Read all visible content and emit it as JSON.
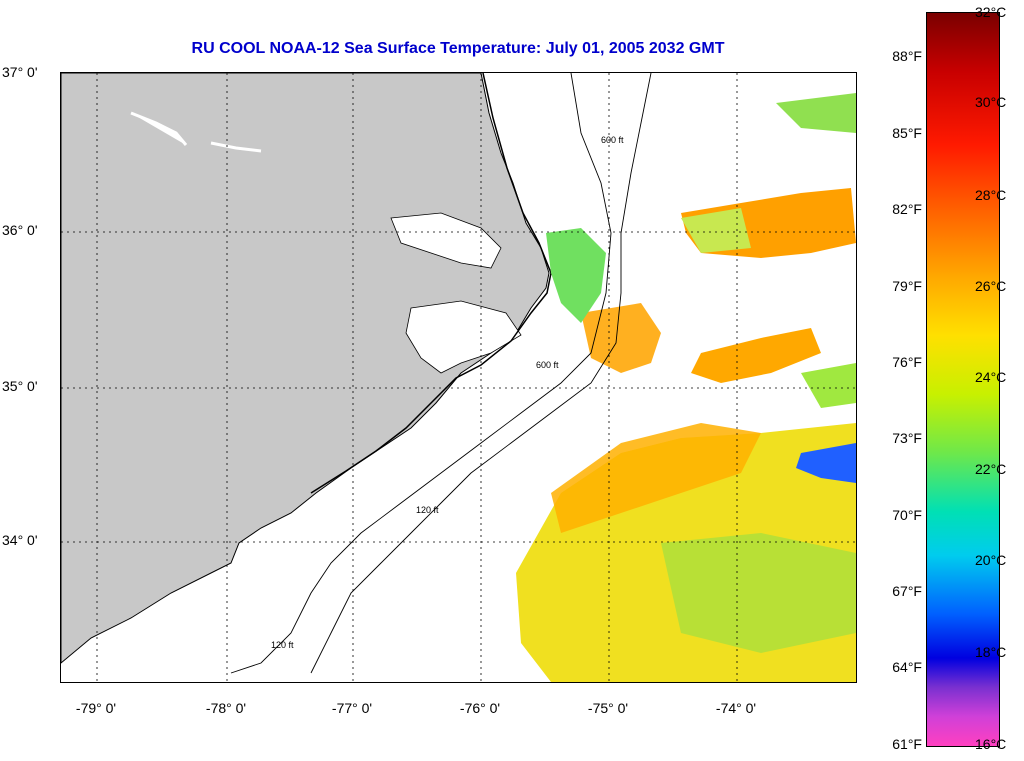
{
  "title": "RU COOL  NOAA-12  Sea Surface Temperature:  July 01, 2005 2032 GMT",
  "latitude_labels": [
    "37° 0'",
    "36° 0'",
    "35° 0'",
    "34° 0'"
  ],
  "longitude_labels": [
    "-79° 0'",
    "-78° 0'",
    "-77° 0'",
    "-76° 0'",
    "-75° 0'",
    "-74° 0'"
  ],
  "contour_labels": [
    "120 ft",
    "600 ft"
  ],
  "colorbar": {
    "fahrenheit": [
      "88°F",
      "85°F",
      "82°F",
      "79°F",
      "76°F",
      "73°F",
      "70°F",
      "67°F",
      "64°F",
      "61°F"
    ],
    "celsius": [
      "32°C",
      "30°C",
      "28°C",
      "26°C",
      "24°C",
      "22°C",
      "20°C",
      "18°C",
      "16°C"
    ]
  },
  "colors": {
    "land": "#c8c8c8",
    "title": "#0000cc",
    "sst_warm": "#ffa000",
    "sst_mid": "#f0e020",
    "sst_cool": "#60e060",
    "sst_cold": "#0040ff"
  }
}
